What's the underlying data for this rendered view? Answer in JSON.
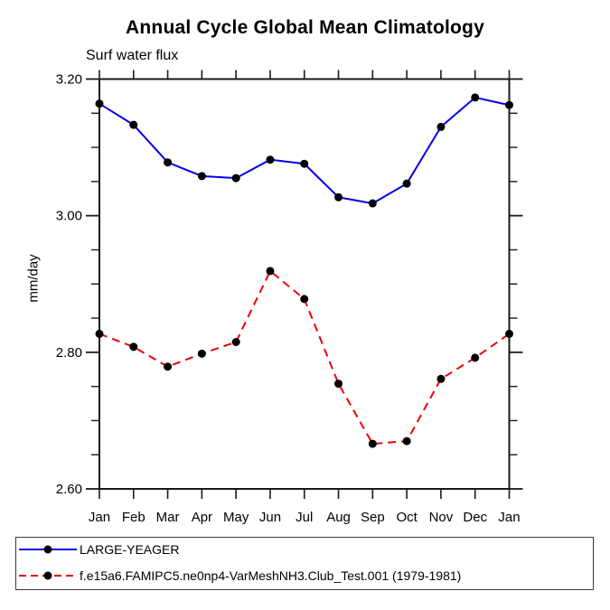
{
  "title": "Annual Cycle Global Mean Climatology",
  "subtitle": "Surf water flux",
  "chart_data": {
    "type": "line",
    "categories": [
      "Jan",
      "Feb",
      "Mar",
      "Apr",
      "May",
      "Jun",
      "Jul",
      "Aug",
      "Sep",
      "Oct",
      "Nov",
      "Dec",
      "Jan"
    ],
    "series": [
      {
        "name": "LARGE-YEAGER",
        "color": "#0000ee",
        "line_style": "solid",
        "marker": "black-dot",
        "values": [
          3.164,
          3.133,
          3.078,
          3.058,
          3.055,
          3.082,
          3.076,
          3.027,
          3.018,
          3.047,
          3.13,
          3.173,
          3.162
        ]
      },
      {
        "name": "f.e15a6.FAMIPC5.ne0np4-VarMeshNH3.Club_Test.001 (1979-1981)",
        "color": "#ee0000",
        "line_style": "dashed",
        "marker": "black-dot",
        "values": [
          2.827,
          2.808,
          2.779,
          2.798,
          2.815,
          2.919,
          2.878,
          2.754,
          2.666,
          2.67,
          2.761,
          2.792,
          2.827
        ]
      }
    ],
    "xlabel": "",
    "ylabel": "mm/day",
    "ylim": [
      2.6,
      3.2
    ],
    "ytick_major": [
      2.6,
      2.8,
      3.0,
      3.2
    ],
    "ytick_labels": [
      "2.60",
      "2.80",
      "3.00",
      "3.20"
    ],
    "ytick_minor_step": 0.05,
    "grid": false,
    "legend_position": "bottom",
    "frame_color": "#1a1a1a",
    "marker_color": "#000000"
  },
  "legend": {
    "entries": [
      {
        "label": "LARGE-YEAGER"
      },
      {
        "label": "f.e15a6.FAMIPC5.ne0np4-VarMeshNH3.Club_Test.001 (1979-1981)"
      }
    ]
  }
}
